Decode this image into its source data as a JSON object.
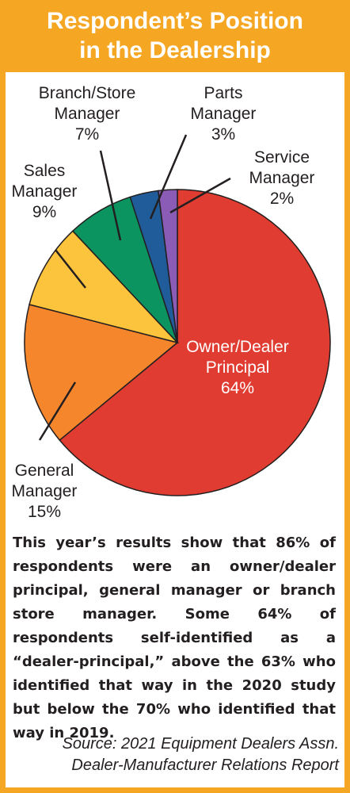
{
  "colors": {
    "frame": "#f5a623",
    "owner": "#e03c31",
    "general": "#f5862b",
    "sales": "#fcc33c",
    "branch": "#0c9460",
    "parts": "#1f5c99",
    "service": "#8a5cb5"
  },
  "chart_data": {
    "type": "pie",
    "title": "Respondent’s Position in the Dealership",
    "title_lines": [
      "Respondent’s Position",
      "in the Dealership"
    ],
    "unit": "%",
    "slices": [
      {
        "label": "Owner/Dealer Principal",
        "label_lines": [
          "Owner/Dealer",
          "Principal"
        ],
        "value": 64,
        "value_label": "64%",
        "color": "#e03c31"
      },
      {
        "label": "General Manager",
        "label_lines": [
          "General",
          "Manager"
        ],
        "value": 15,
        "value_label": "15%",
        "color": "#f5862b"
      },
      {
        "label": "Sales Manager",
        "label_lines": [
          "Sales",
          "Manager"
        ],
        "value": 9,
        "value_label": "9%",
        "color": "#fcc33c"
      },
      {
        "label": "Branch/Store Manager",
        "label_lines": [
          "Branch/Store",
          "Manager"
        ],
        "value": 7,
        "value_label": "7%",
        "color": "#0c9460"
      },
      {
        "label": "Parts Manager",
        "label_lines": [
          "Parts",
          "Manager"
        ],
        "value": 3,
        "value_label": "3%",
        "color": "#1f5c99"
      },
      {
        "label": "Service Manager",
        "label_lines": [
          "Service",
          "Manager"
        ],
        "value": 2,
        "value_label": "2%",
        "color": "#8a5cb5"
      }
    ]
  },
  "body_text": "This year’s results show that 86% of respondents were an owner/dealer principal, general manager or branch store manager. Some 64% of respondents self-identified as a “dealer-principal,” above the 63% who identified that way in the 2020 study but below the 70% who identified that way in 2019.",
  "source": {
    "line1": "Source: 2021 Equipment Dealers Assn.",
    "line2": "Dealer-Manufacturer Relations Report"
  }
}
